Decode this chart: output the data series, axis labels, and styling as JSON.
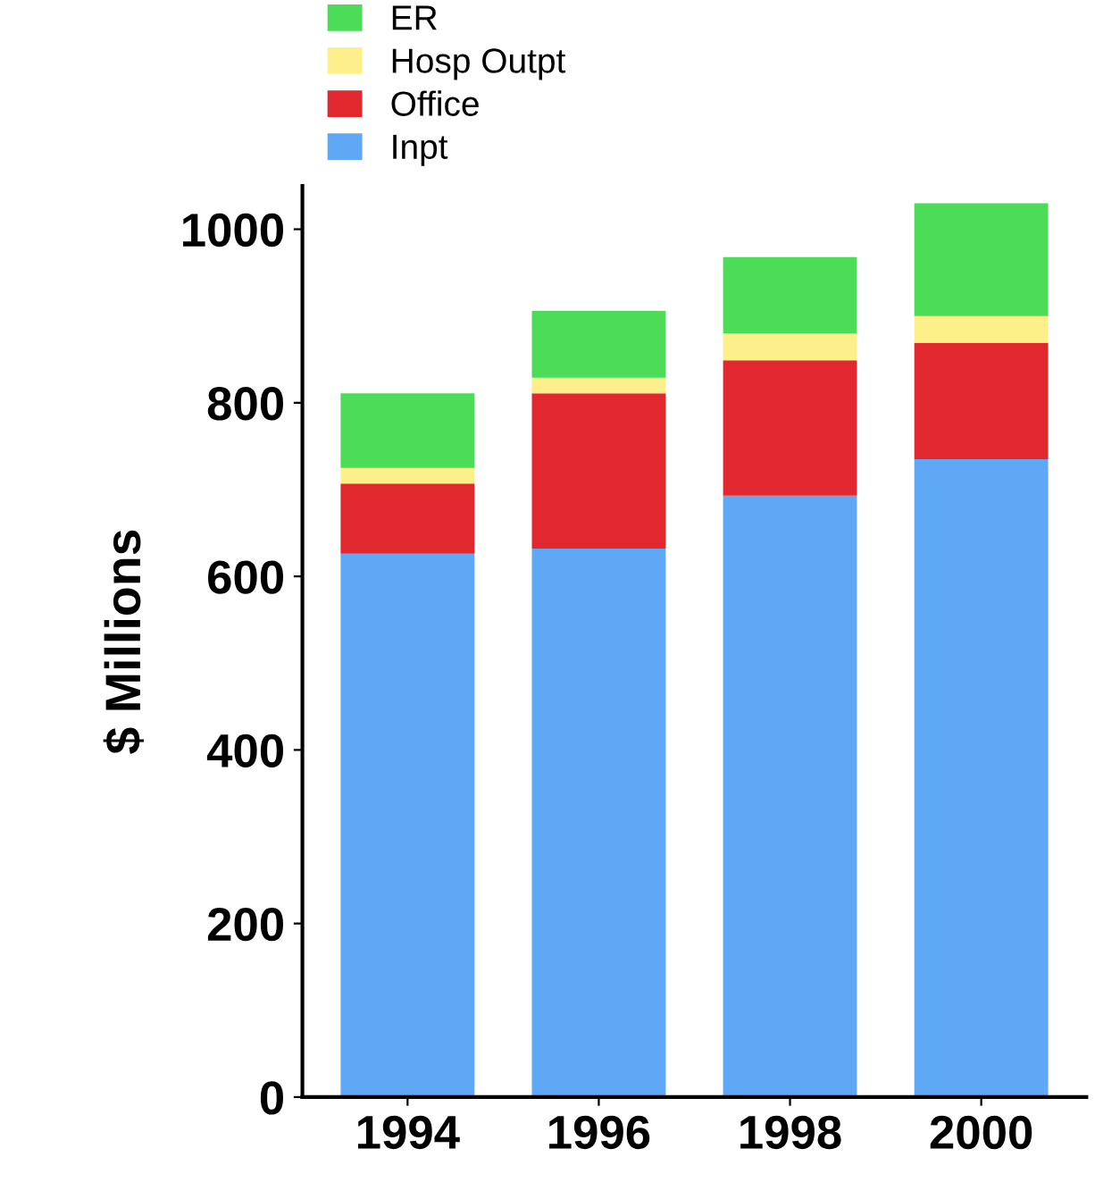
{
  "chart_data": {
    "type": "bar",
    "stacked": true,
    "ylabel": "$ Millions",
    "categories": [
      "1994",
      "1996",
      "1998",
      "2000"
    ],
    "series": [
      {
        "name": "Inpt",
        "color": "#5fa8f5",
        "values": [
          626,
          632,
          693,
          735
        ]
      },
      {
        "name": "Office",
        "color": "#e0282e",
        "values": [
          81,
          179,
          156,
          134
        ]
      },
      {
        "name": "Hosp Outpt",
        "color": "#fdf08a",
        "values": [
          18,
          18,
          31,
          31
        ]
      },
      {
        "name": "ER",
        "color": "#4cdc58",
        "values": [
          86,
          77,
          88,
          130
        ]
      }
    ],
    "ylim": [
      0,
      1050
    ],
    "yticks": [
      0,
      200,
      400,
      600,
      800,
      1000
    ],
    "grid": false,
    "legend": "top left"
  }
}
